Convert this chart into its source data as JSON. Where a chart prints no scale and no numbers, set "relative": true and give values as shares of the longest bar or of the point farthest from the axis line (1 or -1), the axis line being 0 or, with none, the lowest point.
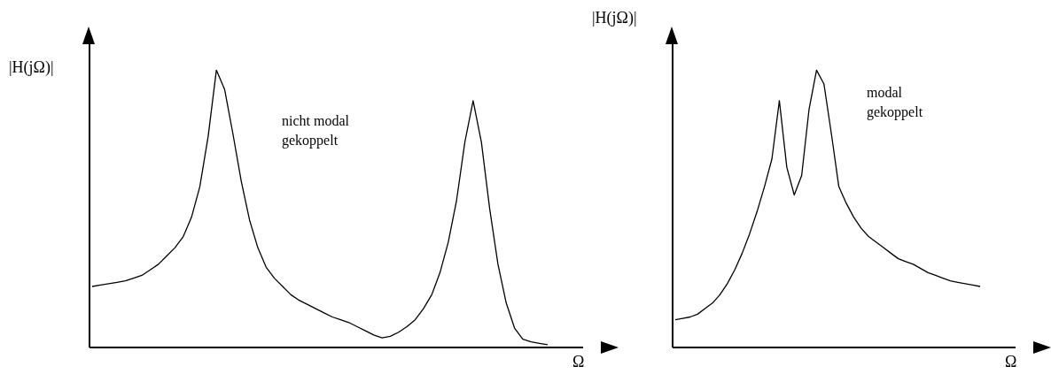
{
  "chart_data": [
    {
      "type": "line",
      "relative": true,
      "ylabel": "|H(jΩ)|",
      "xlabel": "Ω",
      "annotations": [
        "nicht modal gekoppelt"
      ],
      "marker": "none",
      "line_style": "solid",
      "categories": [
        null,
        null,
        null,
        null,
        null,
        null,
        null,
        null,
        null,
        null,
        null,
        null,
        null,
        null,
        null,
        null,
        null,
        null,
        null,
        null,
        null,
        null,
        null,
        null,
        null,
        null,
        null,
        null,
        null,
        null,
        null,
        null,
        null,
        null,
        null,
        null,
        null,
        null,
        null,
        null,
        null,
        null,
        null,
        null,
        null,
        null,
        null,
        null,
        null,
        null,
        null,
        null,
        null,
        null,
        null,
        null
      ],
      "series": [
        {
          "color": "#000000",
          "values": [
            0.22,
            0.225,
            0.23,
            0.235,
            0.24,
            0.25,
            0.26,
            0.28,
            0.3,
            0.33,
            0.36,
            0.4,
            0.47,
            0.58,
            0.76,
            1.0,
            0.93,
            0.77,
            0.6,
            0.46,
            0.36,
            0.29,
            0.25,
            0.22,
            0.19,
            0.17,
            0.155,
            0.14,
            0.125,
            0.11,
            0.1,
            0.09,
            0.075,
            0.06,
            0.045,
            0.035,
            0.04,
            0.055,
            0.075,
            0.1,
            0.14,
            0.19,
            0.27,
            0.38,
            0.53,
            0.74,
            0.89,
            0.74,
            0.5,
            0.3,
            0.16,
            0.07,
            0.03,
            0.02,
            0.015,
            0.01
          ]
        }
      ]
    },
    {
      "type": "line",
      "relative": true,
      "ylabel": "|H(jΩ)|",
      "xlabel": "Ω",
      "annotations": [
        "modal gekoppelt"
      ],
      "marker": "none",
      "line_style": "solid",
      "categories": [
        null,
        null,
        null,
        null,
        null,
        null,
        null,
        null,
        null,
        null,
        null,
        null,
        null,
        null,
        null,
        null,
        null,
        null,
        null,
        null,
        null,
        null,
        null,
        null,
        null,
        null,
        null,
        null,
        null,
        null,
        null,
        null,
        null,
        null,
        null,
        null,
        null,
        null,
        null,
        null,
        null,
        null
      ],
      "series": [
        {
          "color": "#000000",
          "values": [
            0.1,
            0.105,
            0.11,
            0.12,
            0.14,
            0.16,
            0.19,
            0.23,
            0.28,
            0.34,
            0.41,
            0.49,
            0.58,
            0.68,
            0.89,
            0.65,
            0.55,
            0.62,
            0.86,
            1.0,
            0.95,
            0.77,
            0.58,
            0.52,
            0.47,
            0.43,
            0.4,
            0.38,
            0.36,
            0.34,
            0.32,
            0.31,
            0.3,
            0.285,
            0.27,
            0.26,
            0.25,
            0.24,
            0.235,
            0.23,
            0.225,
            0.22
          ]
        }
      ]
    }
  ]
}
